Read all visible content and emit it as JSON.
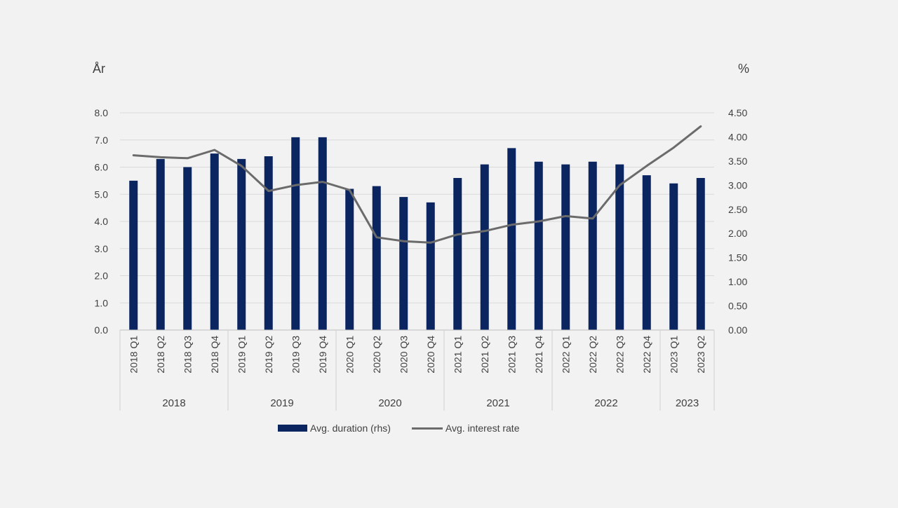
{
  "chart_data": {
    "type": "bar",
    "left_axis_unit": "År",
    "right_axis_unit": "%",
    "categories": [
      "2018 Q1",
      "2018 Q2",
      "2018 Q3",
      "2018 Q4",
      "2019 Q1",
      "2019 Q2",
      "2019 Q3",
      "2019 Q4",
      "2020 Q1",
      "2020 Q2",
      "2020 Q3",
      "2020 Q4",
      "2021 Q1",
      "2021 Q2",
      "2021 Q3",
      "2021 Q4",
      "2022 Q1",
      "2022 Q2",
      "2022 Q3",
      "2022 Q4",
      "2023 Q1",
      "2023 Q2"
    ],
    "year_groups": [
      {
        "label": "2018",
        "count": 4
      },
      {
        "label": "2019",
        "count": 4
      },
      {
        "label": "2020",
        "count": 4
      },
      {
        "label": "2021",
        "count": 4
      },
      {
        "label": "2022",
        "count": 4
      },
      {
        "label": "2023",
        "count": 2
      }
    ],
    "series": [
      {
        "name": "Avg. duration (rhs)",
        "type": "bar",
        "axis": "left",
        "color": "#0b2560",
        "values": [
          5.5,
          6.3,
          6.0,
          6.5,
          6.3,
          6.4,
          7.1,
          7.1,
          5.2,
          5.3,
          4.9,
          4.7,
          5.6,
          6.1,
          6.7,
          6.2,
          6.1,
          6.2,
          6.1,
          5.7,
          5.4,
          5.6
        ]
      },
      {
        "name": "Avg. interest rate",
        "type": "line",
        "axis": "right",
        "color": "#6b6b6b",
        "values": [
          3.62,
          3.58,
          3.56,
          3.73,
          3.4,
          2.88,
          3.0,
          3.07,
          2.9,
          1.92,
          1.84,
          1.81,
          1.98,
          2.05,
          2.18,
          2.25,
          2.36,
          2.31,
          3.0,
          3.4,
          3.78,
          4.22
        ]
      }
    ],
    "ylim_left": [
      0,
      8
    ],
    "ylim_right": [
      0,
      4.5
    ],
    "yticks_left": [
      "0.0",
      "1.0",
      "2.0",
      "3.0",
      "4.0",
      "5.0",
      "6.0",
      "7.0",
      "8.0"
    ],
    "yticks_right": [
      "0.00",
      "0.50",
      "1.00",
      "1.50",
      "2.00",
      "2.50",
      "3.00",
      "3.50",
      "4.00",
      "4.50"
    ],
    "grid": true,
    "legend_position": "bottom"
  }
}
